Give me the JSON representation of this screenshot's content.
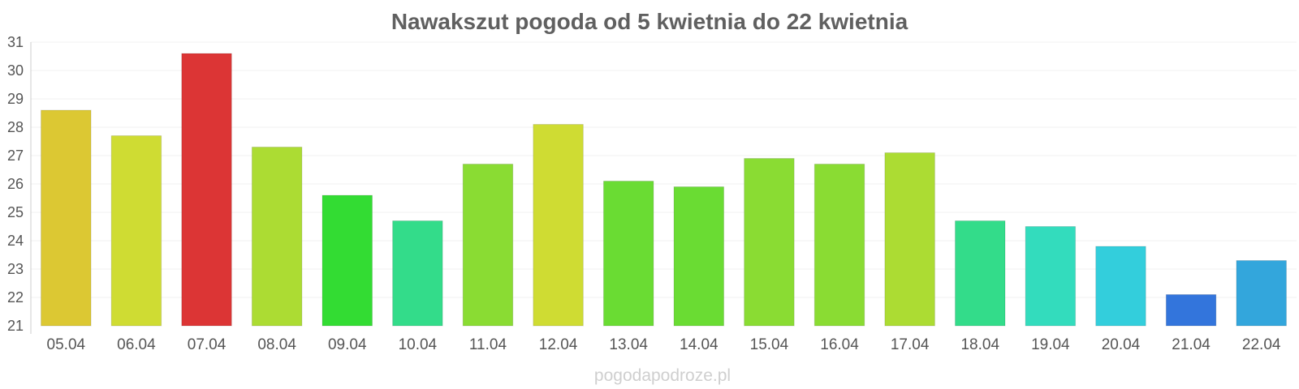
{
  "chart_data": {
    "type": "bar",
    "title": "Nawakszut pogoda od 5 kwietnia do 22 kwietnia",
    "categories": [
      "05.04",
      "06.04",
      "07.04",
      "08.04",
      "09.04",
      "10.04",
      "11.04",
      "12.04",
      "13.04",
      "14.04",
      "15.04",
      "16.04",
      "17.04",
      "18.04",
      "19.04",
      "20.04",
      "21.04",
      "22.04"
    ],
    "values": [
      28.6,
      27.7,
      30.6,
      27.3,
      25.6,
      24.7,
      26.7,
      28.1,
      26.1,
      25.9,
      26.9,
      26.7,
      27.1,
      24.7,
      24.5,
      23.8,
      22.1,
      23.3
    ],
    "colors": [
      "#dcc833",
      "#cfdc33",
      "#dc3535",
      "#acdc33",
      "#33dc33",
      "#33dc8a",
      "#8adc33",
      "#cfdc33",
      "#6adc33",
      "#6adc33",
      "#8adc33",
      "#8adc33",
      "#acdc33",
      "#33dc8a",
      "#33dcbd",
      "#33cedc",
      "#3375dc",
      "#33a6dc"
    ],
    "ylim": [
      21,
      31
    ],
    "yticks": [
      21,
      22,
      23,
      24,
      25,
      26,
      27,
      28,
      29,
      30,
      31
    ],
    "grid": true,
    "xlabel": "",
    "ylabel": ""
  },
  "watermark": "pogodapodroze.pl"
}
